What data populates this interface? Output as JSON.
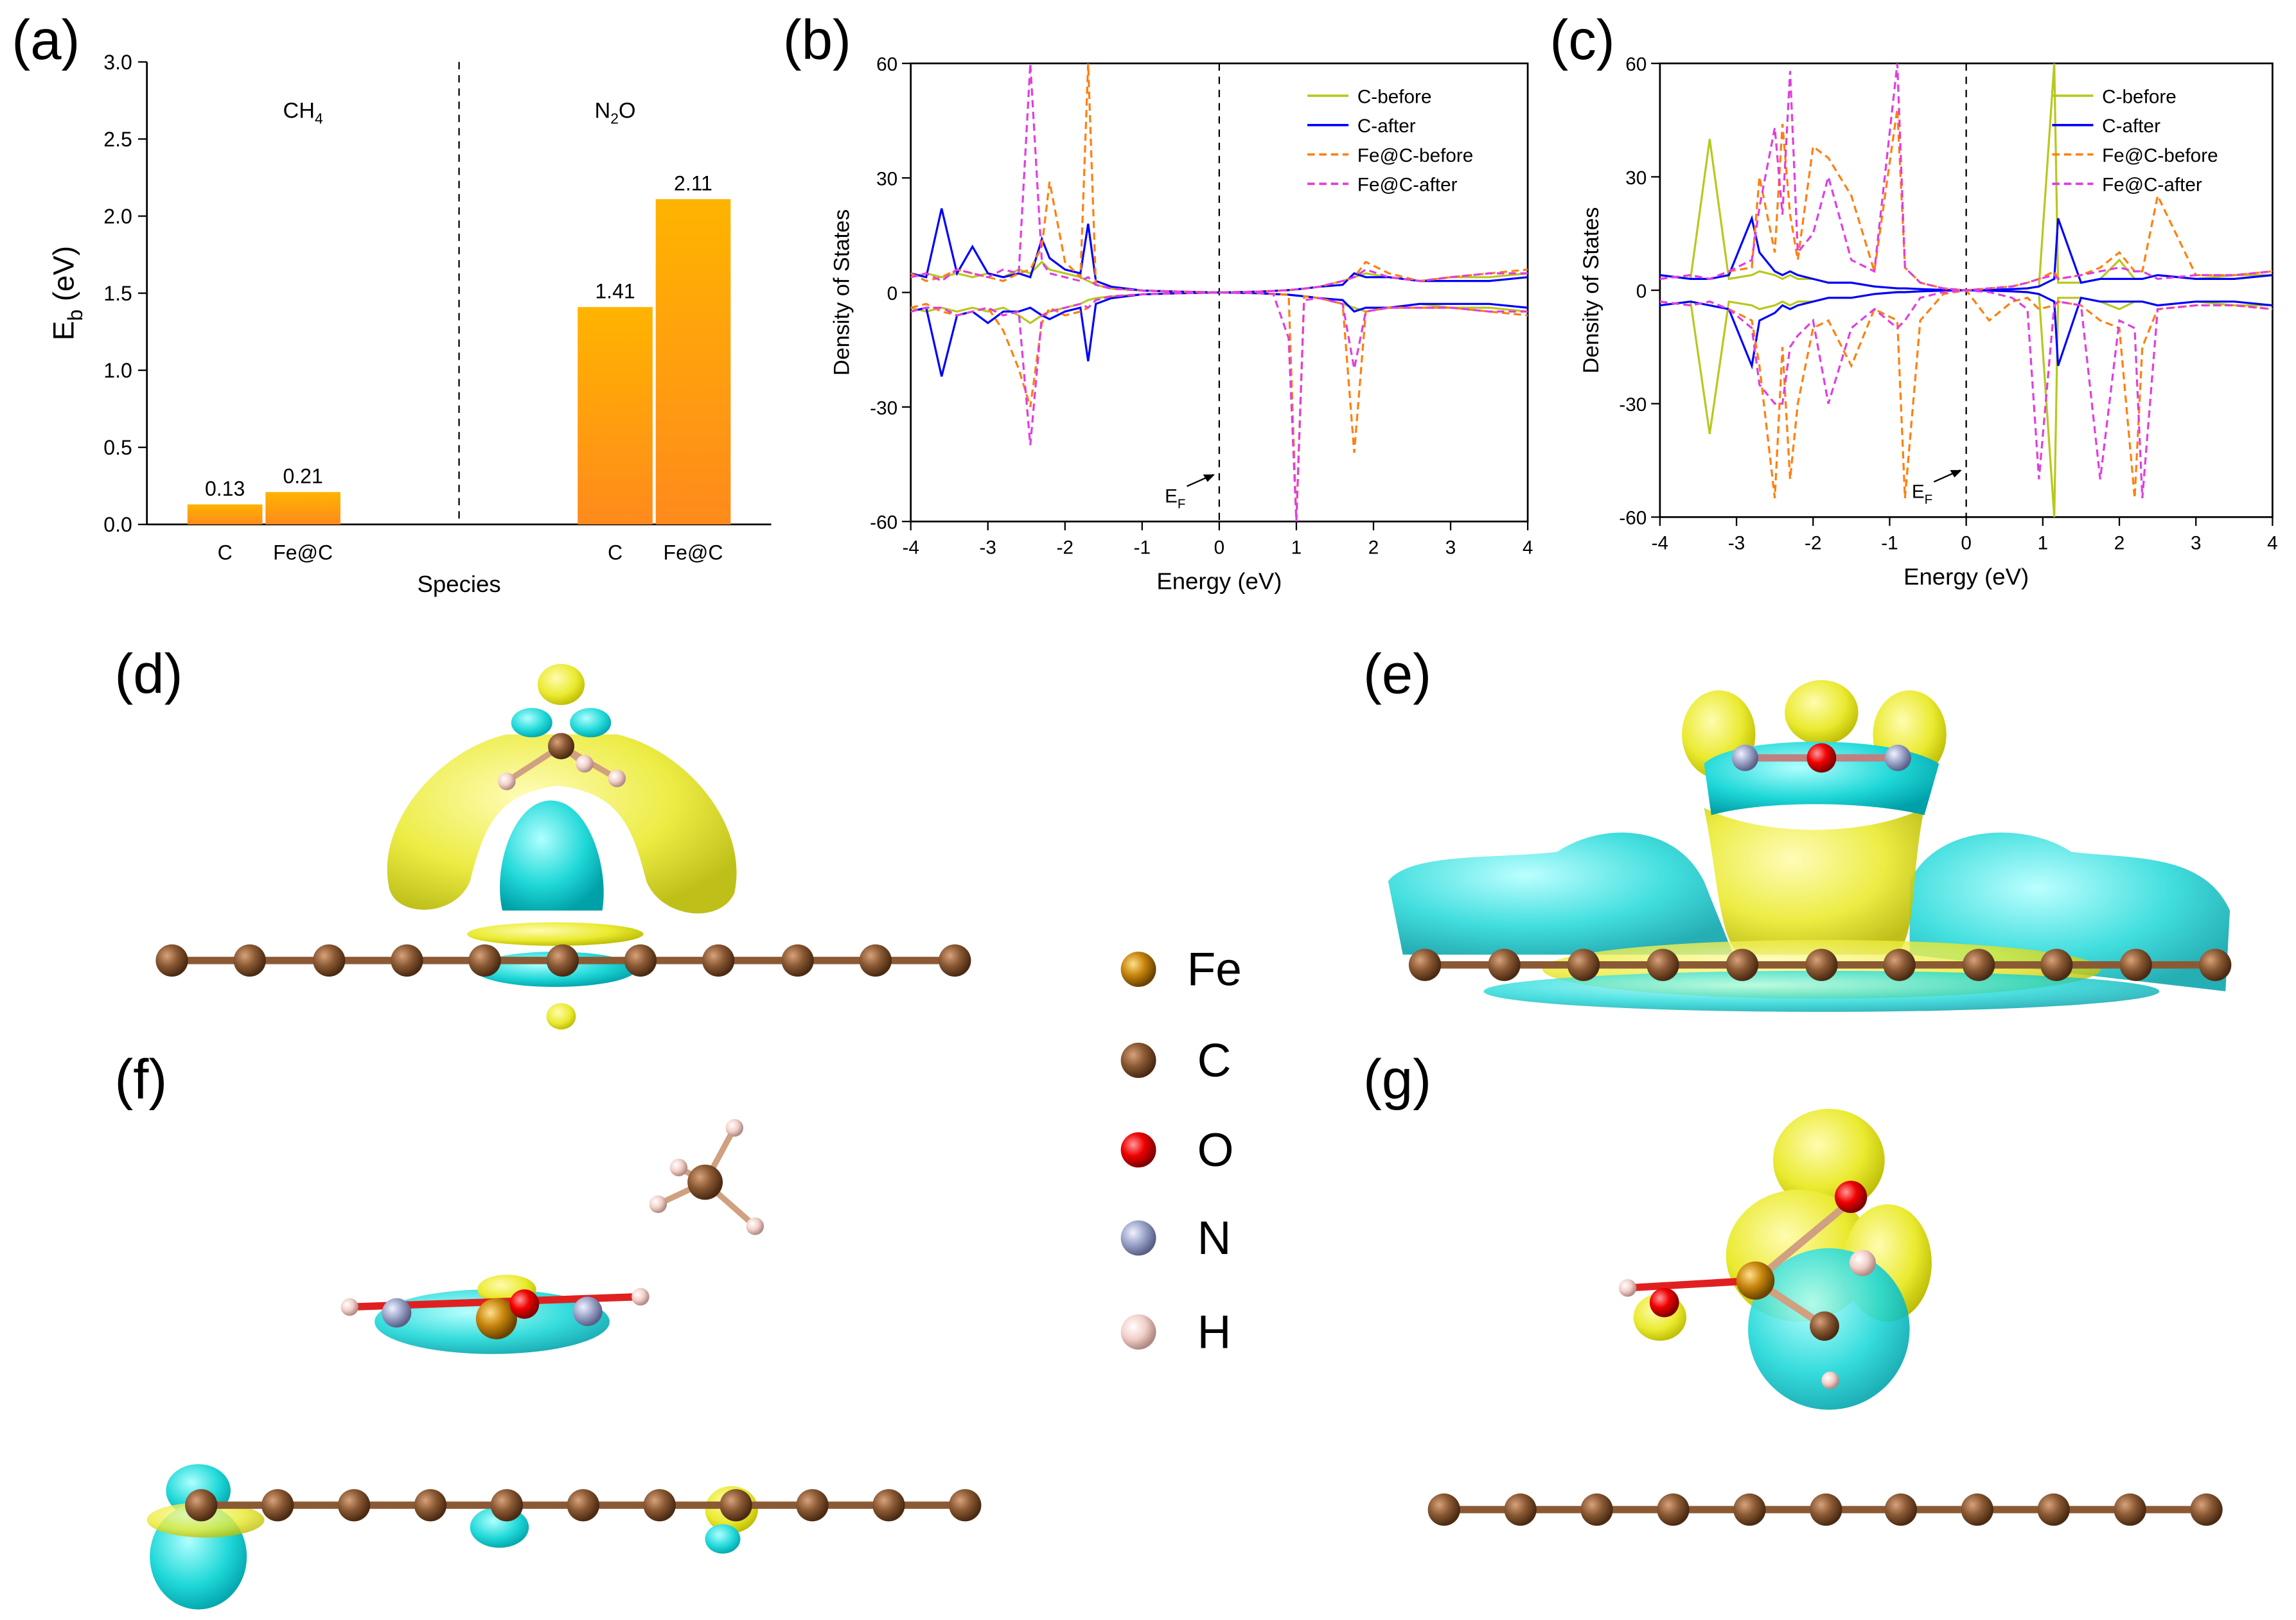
{
  "chart_data": [
    {
      "type": "bar",
      "panel_label": "(a)",
      "categories": [
        "C",
        "Fe@C",
        "C",
        "Fe@C"
      ],
      "groups": [
        [
          "CH",
          "4"
        ],
        [
          "N",
          "2",
          "O"
        ]
      ],
      "values": [
        0.13,
        0.21,
        1.41,
        2.11
      ],
      "xlabel": "Species",
      "ylabel": [
        "E",
        "b",
        " (eV)"
      ],
      "ylim": [
        0,
        3
      ],
      "yticks": [
        {
          "value": 0,
          "label": "0.0"
        },
        0.5,
        {
          "value": 1,
          "label": "1.0"
        },
        1.5,
        {
          "value": 2,
          "label": "2.0"
        },
        2.5,
        {
          "value": 3,
          "label": "3.0"
        }
      ],
      "color": [
        "#ffb400",
        "#ff8a1c"
      ]
    },
    {
      "type": "line",
      "panel_label": "(b)",
      "xlabel": "Energy (eV)",
      "ylabel": "Density of States",
      "annotation": {
        "text": "E",
        "sub": "F"
      },
      "fermi_level": 0,
      "xlim": [
        -4,
        4
      ],
      "xticks": [
        -4,
        -3,
        -2,
        -1,
        0,
        1,
        2,
        3,
        4
      ],
      "ylim": [
        -60,
        60
      ],
      "yticks": [
        -60,
        -30,
        0,
        30,
        60
      ],
      "x": [
        -4,
        -3.8,
        -3.6,
        -3.4,
        -3.2,
        -3,
        -2.8,
        -2.6,
        -2.45,
        -2.3,
        -2.2,
        -2,
        -1.8,
        -1.7,
        -1.6,
        -1.4,
        -1,
        -0.5,
        0,
        0.5,
        0.7,
        0.9,
        1.0,
        1.1,
        1.3,
        1.6,
        1.75,
        1.9,
        2.2,
        2.6,
        3,
        3.5,
        4
      ],
      "series": [
        {
          "name": "C-before",
          "color": "#b7c81e",
          "dash": false,
          "values": [
            4,
            5,
            4,
            5,
            4,
            5,
            4,
            6,
            5,
            8,
            6,
            5,
            4,
            3,
            2,
            1,
            0.5,
            0.2,
            0,
            0.2,
            0.4,
            0.6,
            0.8,
            1,
            1.5,
            3,
            4,
            5,
            4,
            3,
            4,
            4,
            5
          ],
          "values_down": [
            -4,
            -5,
            -4,
            -5,
            -4,
            -5,
            -4,
            -6,
            -8,
            -6,
            -5,
            -4,
            -3,
            -2,
            -1.5,
            -1,
            -0.5,
            -0.2,
            0,
            -0.2,
            -0.4,
            -0.6,
            -0.8,
            -1,
            -1.5,
            -3,
            -4,
            -5,
            -4,
            -3,
            -4,
            -4,
            -5
          ]
        },
        {
          "name": "C-after",
          "color": "#0000ff",
          "dash": false,
          "values": [
            5,
            4,
            22,
            5,
            12,
            5,
            4,
            5,
            4,
            14,
            9,
            6,
            5,
            18,
            3,
            1.5,
            0.5,
            0.2,
            0,
            0.2,
            0.4,
            0.6,
            0.8,
            1,
            1.5,
            2,
            5,
            4,
            4,
            3,
            3,
            3,
            4
          ],
          "values_down": [
            -5,
            -4,
            -22,
            -6,
            -5,
            -8,
            -5,
            -5,
            -4,
            -6,
            -7,
            -5,
            -4,
            -18,
            -3,
            -1.5,
            -0.5,
            -0.2,
            0,
            -0.2,
            -0.4,
            -0.6,
            -0.8,
            -1,
            -1.5,
            -2,
            -5,
            -4,
            -4,
            -3,
            -3,
            -3,
            -4
          ]
        },
        {
          "name": "Fe@C-before",
          "color": "#ff7f0e",
          "dash": true,
          "values": [
            5,
            3,
            4,
            6,
            5,
            4,
            3,
            5,
            6,
            12,
            29,
            8,
            4,
            60,
            2,
            1,
            0.5,
            0.2,
            0,
            0.2,
            0.4,
            0.6,
            0.8,
            1,
            1.5,
            3,
            4,
            8,
            5,
            3,
            4,
            5,
            6
          ],
          "values_down": [
            -4,
            -3,
            -5,
            -6,
            -5,
            -4,
            -10,
            -20,
            -30,
            -8,
            -4,
            -6,
            -5,
            -4,
            -2,
            -1,
            -0.5,
            -0.2,
            0,
            -0.2,
            -0.4,
            -0.6,
            -60,
            -1,
            -1.5,
            -3,
            -42,
            -5,
            -4,
            -4,
            -4,
            -5,
            -6
          ]
        },
        {
          "name": "Fe@C-after",
          "color": "#e03ee0",
          "dash": true,
          "values": [
            4,
            5,
            3,
            6,
            5,
            4,
            6,
            5,
            60,
            8,
            5,
            4,
            3,
            4,
            2,
            1,
            0.5,
            0.2,
            0,
            0.2,
            0.4,
            0.6,
            0.8,
            1,
            1.5,
            3,
            4,
            6,
            4,
            3,
            4,
            5,
            5
          ],
          "values_down": [
            -5,
            -4,
            -4,
            -6,
            -5,
            -4,
            -6,
            -5,
            -40,
            -6,
            -5,
            -4,
            -3,
            -4,
            -2,
            -1,
            -0.5,
            -0.2,
            0,
            -0.2,
            -0.4,
            -12,
            -60,
            -2,
            -1.5,
            -3,
            -20,
            -5,
            -4,
            -4,
            -4,
            -5,
            -5
          ]
        }
      ]
    },
    {
      "type": "line",
      "panel_label": "(c)",
      "xlabel": "Energy (eV)",
      "ylabel": "Density of States",
      "annotation": {
        "text": "E",
        "sub": "F"
      },
      "fermi_level": 0,
      "xlim": [
        -4,
        4
      ],
      "xticks": [
        -4,
        -3,
        -2,
        -1,
        0,
        1,
        2,
        3,
        4
      ],
      "ylim": [
        -60,
        60
      ],
      "yticks": [
        -60,
        -30,
        0,
        30,
        60
      ],
      "x": [
        -4,
        -3.6,
        -3.35,
        -3.1,
        -2.8,
        -2.7,
        -2.5,
        -2.4,
        -2.3,
        -2.2,
        -2,
        -1.8,
        -1.5,
        -1.2,
        -0.9,
        -0.8,
        -0.6,
        -0.3,
        0,
        0.3,
        0.6,
        0.8,
        0.95,
        1.15,
        1.2,
        1.5,
        1.75,
        2,
        2.2,
        2.3,
        2.5,
        3,
        3.5,
        4
      ],
      "series": [
        {
          "name": "C-before",
          "color": "#b7c81e",
          "dash": false,
          "values": [
            4,
            3,
            40,
            3,
            4,
            5,
            4,
            3,
            4,
            3,
            3,
            2,
            2,
            1,
            0.5,
            0.5,
            0.3,
            0.1,
            0,
            0.1,
            0.3,
            0.5,
            1,
            60,
            2,
            2,
            3,
            8,
            3,
            3,
            4,
            3,
            4,
            4
          ],
          "values_down": [
            -4,
            -3,
            -38,
            -3,
            -4,
            -5,
            -4,
            -3,
            -4,
            -3,
            -3,
            -2,
            -2,
            -1,
            -0.5,
            -0.5,
            -0.3,
            -0.1,
            0,
            -0.1,
            -0.3,
            -0.5,
            -1,
            -60,
            -2,
            -2,
            -3,
            -5,
            -3,
            -3,
            -4,
            -3,
            -4,
            -4
          ]
        },
        {
          "name": "C-after",
          "color": "#0000ff",
          "dash": false,
          "values": [
            4,
            3,
            3,
            4,
            19,
            10,
            5,
            4,
            5,
            4,
            3,
            2,
            2,
            1,
            0.5,
            0.5,
            0.3,
            0.1,
            0,
            0.1,
            0.3,
            0.5,
            1,
            3,
            19,
            2,
            3,
            3,
            3,
            3,
            4,
            3,
            3,
            4
          ],
          "values_down": [
            -4,
            -3,
            -4,
            -5,
            -20,
            -8,
            -6,
            -4,
            -5,
            -4,
            -3,
            -2,
            -2,
            -1,
            -0.5,
            -0.5,
            -0.3,
            -0.1,
            0,
            -0.1,
            -0.3,
            -0.5,
            -1,
            -3,
            -20,
            -2,
            -3,
            -3,
            -3,
            -3,
            -4,
            -3,
            -3,
            -4
          ]
        },
        {
          "name": "Fe@C-before",
          "color": "#ff7f0e",
          "dash": true,
          "values": [
            3,
            4,
            3,
            5,
            6,
            30,
            10,
            44,
            20,
            8,
            38,
            35,
            25,
            5,
            48,
            6,
            2,
            0.5,
            0,
            0.5,
            1,
            2,
            3,
            5,
            3,
            4,
            6,
            10,
            5,
            5,
            25,
            4,
            4,
            5
          ],
          "values_down": [
            -3,
            -4,
            -3,
            -5,
            -8,
            -20,
            -55,
            -15,
            -50,
            -30,
            -10,
            -8,
            -20,
            -5,
            -8,
            -55,
            -8,
            -1,
            0,
            -8,
            -3,
            -2,
            -5,
            -4,
            -3,
            -4,
            -8,
            -10,
            -55,
            -15,
            -5,
            -4,
            -4,
            -5
          ]
        },
        {
          "name": "Fe@C-after",
          "color": "#e03ee0",
          "dash": true,
          "values": [
            3,
            4,
            3,
            5,
            8,
            22,
            43,
            20,
            58,
            10,
            15,
            30,
            8,
            5,
            60,
            6,
            2,
            0.5,
            0,
            0.5,
            1,
            2,
            3,
            4,
            3,
            4,
            5,
            6,
            5,
            5,
            3,
            4,
            4,
            5
          ],
          "values_down": [
            -3,
            -4,
            -3,
            -5,
            -10,
            -25,
            -30,
            -30,
            -15,
            -12,
            -8,
            -30,
            -10,
            -5,
            -10,
            -8,
            -2,
            -0.5,
            0,
            -0.5,
            -2,
            -5,
            -50,
            -4,
            -3,
            -4,
            -50,
            -8,
            -10,
            -55,
            -5,
            -4,
            -4,
            -5
          ]
        }
      ]
    }
  ],
  "structures": {
    "panels": [
      "(d)",
      "(e)",
      "(f)",
      "(g)"
    ],
    "legend": [
      "Fe",
      "C",
      "O",
      "N",
      "H"
    ]
  }
}
